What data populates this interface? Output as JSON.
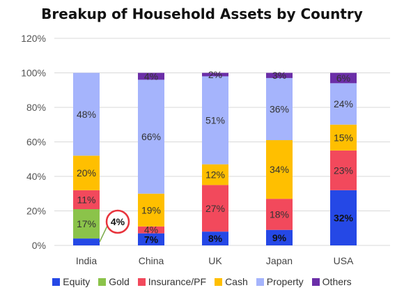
{
  "chart_data": {
    "type": "bar",
    "stacked": true,
    "title": "Breakup of Household Assets by Country",
    "xlabel": "",
    "ylabel": "",
    "ylim": [
      0,
      120
    ],
    "y_ticks": [
      "0%",
      "20%",
      "40%",
      "60%",
      "80%",
      "100%",
      "120%"
    ],
    "grid": true,
    "legend_position": "bottom",
    "categories": [
      "India",
      "China",
      "UK",
      "Japan",
      "USA"
    ],
    "series": [
      {
        "name": "Equity",
        "color": "#2548e6",
        "values": [
          4,
          7,
          8,
          9,
          32
        ],
        "labels": [
          "",
          "7%",
          "8%",
          "9%",
          "32%"
        ],
        "label_bold": true
      },
      {
        "name": "Gold",
        "color": "#8bc34a",
        "values": [
          17,
          0,
          0,
          0,
          0
        ],
        "labels": [
          "17%",
          "",
          "",
          "",
          ""
        ]
      },
      {
        "name": "Insurance/PF",
        "color": "#f2495c",
        "values": [
          11,
          4,
          27,
          18,
          23
        ],
        "labels": [
          "11%",
          "4%",
          "27%",
          "18%",
          "23%"
        ]
      },
      {
        "name": "Cash",
        "color": "#ffbf00",
        "values": [
          20,
          19,
          12,
          34,
          15
        ],
        "labels": [
          "20%",
          "19%",
          "12%",
          "34%",
          "15%"
        ]
      },
      {
        "name": "Property",
        "color": "#a5b4fc",
        "values": [
          48,
          66,
          51,
          36,
          24
        ],
        "labels": [
          "48%",
          "66%",
          "51%",
          "36%",
          "24%"
        ]
      },
      {
        "name": "Others",
        "color": "#6b2ea8",
        "values": [
          0,
          4,
          2,
          3,
          6
        ],
        "labels": [
          "",
          "4%",
          "2%",
          "3%",
          "6%"
        ]
      }
    ],
    "annotations": [
      {
        "text": "4%",
        "category": "India",
        "series": "Equity",
        "style": "circled"
      }
    ]
  }
}
